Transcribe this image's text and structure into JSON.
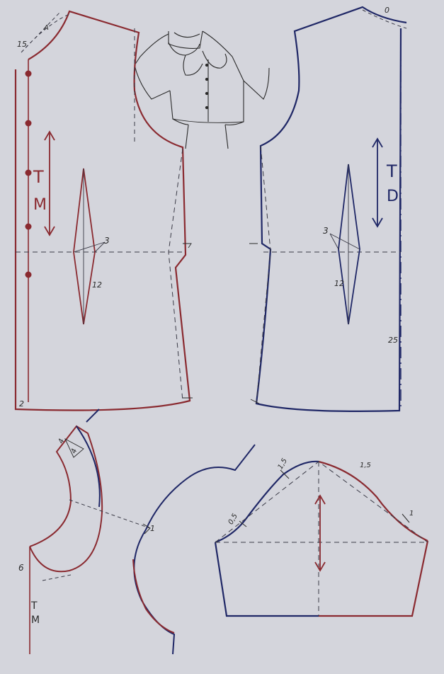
{
  "colors": {
    "background": "#d4d5dc",
    "front_piece": "#8a2a30",
    "back_piece": "#1f2766",
    "guide_lines": "#3a3a46",
    "sketch": "#2a2a2a"
  },
  "front_bodice": {
    "neck_label": "15",
    "neck_label_top": "A",
    "grain_letter_1": "T",
    "grain_letter_2": "M",
    "dart_width_label": "3",
    "dart_length_label": "12",
    "hem_label": "2",
    "buttons": 5
  },
  "back_bodice": {
    "neck_label": "0",
    "grain_letter_1": "T",
    "grain_letter_2": "D",
    "dart_width_label": "3",
    "dart_length_label": "12",
    "side_label": "25"
  },
  "collar": {
    "collar_width_label": "4",
    "collar_tip_label": "4",
    "shoulder_label": "1",
    "cf_label": "6",
    "grain_letter_1": "T",
    "grain_letter_2": "M"
  },
  "sleeve": {
    "label_top_left": "1,5",
    "label_top_right": "1,5",
    "label_left": "0,5",
    "label_right": "1"
  }
}
